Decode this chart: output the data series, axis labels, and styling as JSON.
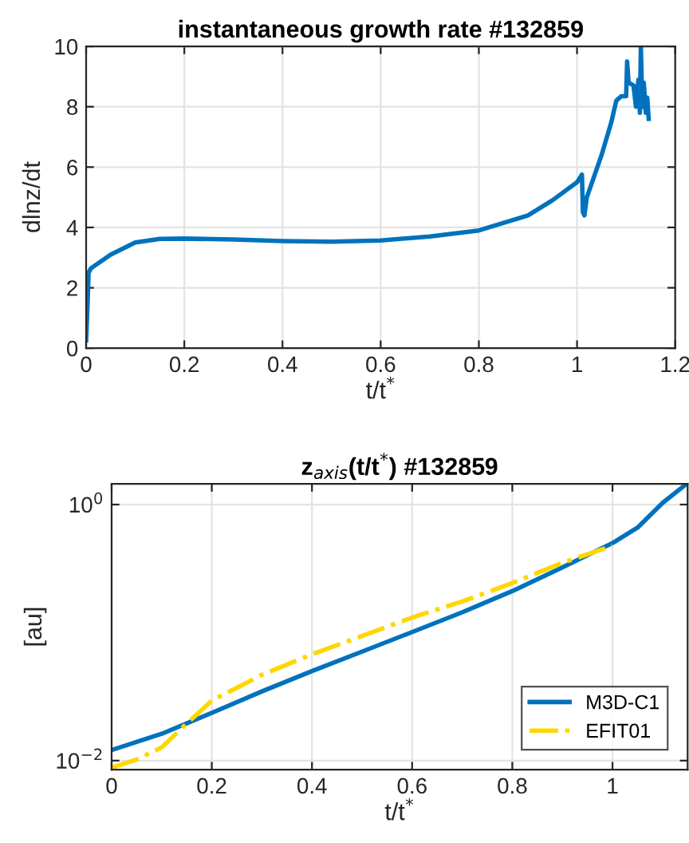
{
  "chart_data": [
    {
      "type": "line",
      "title": "instantaneous growth rate #132859",
      "xlabel": "t/t$^{*}$",
      "ylabel": "dlnz/dt",
      "xlim": [
        0,
        1.2
      ],
      "ylim": [
        0,
        10
      ],
      "xticks": [
        0,
        0.2,
        0.4,
        0.6,
        0.8,
        1,
        1.2
      ],
      "yticks": [
        0,
        2,
        4,
        6,
        8,
        10
      ],
      "grid": true,
      "legend": false,
      "series": [
        {
          "color": "#0072bd",
          "line_style": "solid",
          "x": [
            0.0,
            0.003,
            0.005,
            0.01,
            0.05,
            0.1,
            0.15,
            0.2,
            0.3,
            0.4,
            0.5,
            0.6,
            0.7,
            0.8,
            0.9,
            0.95,
            1.0,
            1.01,
            1.012,
            1.015,
            1.02,
            1.05,
            1.07,
            1.08,
            1.09,
            1.1,
            1.102,
            1.105,
            1.115,
            1.12,
            1.125,
            1.128,
            1.13,
            1.133,
            1.136,
            1.14,
            1.143,
            1.146
          ],
          "values": [
            0.26,
            1.5,
            2.5,
            2.65,
            3.1,
            3.5,
            3.62,
            3.63,
            3.6,
            3.55,
            3.53,
            3.57,
            3.7,
            3.9,
            4.4,
            4.9,
            5.5,
            5.75,
            4.5,
            4.4,
            5.0,
            6.4,
            7.5,
            8.2,
            8.35,
            8.35,
            9.5,
            8.8,
            8.7,
            8.0,
            8.9,
            7.8,
            10.0,
            8.0,
            8.8,
            7.8,
            8.3,
            7.6
          ]
        }
      ]
    },
    {
      "type": "line",
      "title": "z$_{axis}$(t/t$^{*}$) #132859",
      "xlabel": "t/t$^{*}$",
      "ylabel": "[au]",
      "log": "y",
      "xlim": [
        0,
        1.15
      ],
      "ylim": [
        0.0085,
        1.45
      ],
      "xticks": [
        0,
        0.2,
        0.4,
        0.6,
        0.8,
        1
      ],
      "yticks": [
        {
          "value": 0.01,
          "label": "10$^{−2}$"
        },
        {
          "value": 1,
          "label": "10$^{0}$"
        }
      ],
      "grid": true,
      "legend": "bottom right",
      "series": [
        {
          "name": "M3D-C1",
          "color": "#0072bd",
          "line_style": "solid",
          "x": [
            0,
            0.1,
            0.2,
            0.3,
            0.4,
            0.5,
            0.6,
            0.7,
            0.8,
            0.9,
            1.0,
            1.05,
            1.1,
            1.145
          ],
          "values": [
            0.0121,
            0.0162,
            0.0236,
            0.0347,
            0.05,
            0.071,
            0.101,
            0.144,
            0.211,
            0.323,
            0.5,
            0.66,
            1.03,
            1.42
          ]
        },
        {
          "name": "EFIT01",
          "color": "#ffd700",
          "line_style": "dashdot",
          "x": [
            0,
            0.05,
            0.1,
            0.15,
            0.2,
            0.3,
            0.4,
            0.5,
            0.6,
            0.7,
            0.8,
            0.9,
            1.0
          ],
          "values": [
            0.0088,
            0.0102,
            0.0127,
            0.0195,
            0.0294,
            0.0468,
            0.0676,
            0.094,
            0.131,
            0.175,
            0.244,
            0.351,
            0.475
          ]
        }
      ]
    }
  ]
}
